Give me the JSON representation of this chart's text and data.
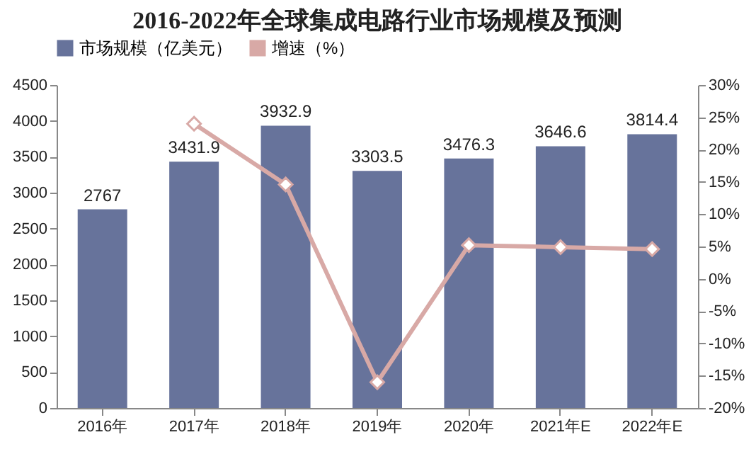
{
  "chart_data": {
    "type": "bar",
    "title": "2016-2022年全球集成电路行业市场规模及预测",
    "categories": [
      "2016年",
      "2017年",
      "2018年",
      "2019年",
      "2020年",
      "2021年E",
      "2022年E"
    ],
    "series": [
      {
        "name": "市场规模（亿美元）",
        "color": "#67739b",
        "values": [
          2767,
          3431.9,
          3932.9,
          3303.5,
          3476.3,
          3646.6,
          3814.4
        ],
        "value_labels": [
          "2767",
          "3431.9",
          "3932.9",
          "3303.5",
          "3476.3",
          "3646.6",
          "3814.4"
        ]
      },
      {
        "name": "增速（%）",
        "type": "line",
        "axis": "y2",
        "color": "#d8a9a6",
        "values": [
          null,
          24.0,
          14.6,
          -16.0,
          5.2,
          4.9,
          4.6
        ]
      }
    ],
    "ylim": [
      0,
      4500
    ],
    "yticks": [
      0,
      500,
      1000,
      1500,
      2000,
      2500,
      3000,
      3500,
      4000,
      4500
    ],
    "y2lim": [
      -20,
      30
    ],
    "y2ticks": [
      {
        "value": -20,
        "label": "-20%"
      },
      {
        "value": -15,
        "label": "-15%"
      },
      {
        "value": -10,
        "label": "-10%"
      },
      {
        "value": -5,
        "label": "-5%"
      },
      {
        "value": 0,
        "label": "0%"
      },
      {
        "value": 5,
        "label": "5%"
      },
      {
        "value": 10,
        "label": "10%"
      },
      {
        "value": 15,
        "label": "15%"
      },
      {
        "value": 20,
        "label": "20%"
      },
      {
        "value": 25,
        "label": "25%"
      },
      {
        "value": 30,
        "label": "30%"
      }
    ],
    "marker": "diamond",
    "legend": "top",
    "grid": false
  }
}
